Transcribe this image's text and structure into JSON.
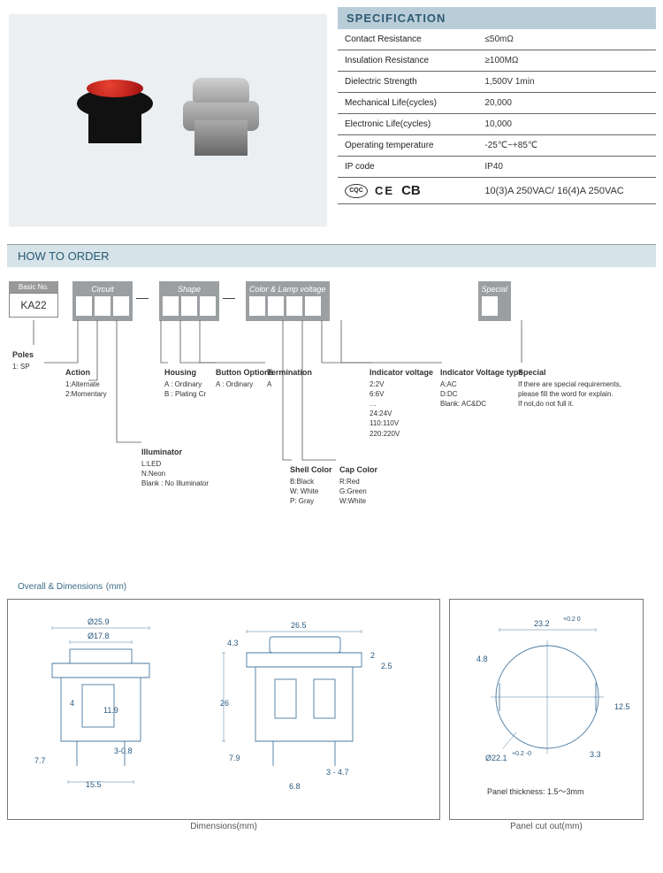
{
  "specification": {
    "header": "SPECIFICATION",
    "rows": [
      {
        "label": "Contact Resistance",
        "value": "≤50mΩ"
      },
      {
        "label": "Insulation Resistance",
        "value": "≥100MΩ"
      },
      {
        "label": "Dielectric Strength",
        "value": "1,500V 1min"
      },
      {
        "label": "Mechanical Life(cycles)",
        "value": "20,000"
      },
      {
        "label": "Electronic  Life(cycles)",
        "value": "10,000"
      },
      {
        "label": "Operating temperature",
        "value": "-25℃~+85℃"
      },
      {
        "label": "IP code",
        "value": "IP40"
      }
    ],
    "cert_cqc": "CQC",
    "cert_ce": "CE",
    "cert_cb": "CB",
    "cert_rating": "10(3)A 250VAC/ 16(4)A 250VAC"
  },
  "order": {
    "header": "HOW TO ORDER",
    "basic_label": "Basic No.",
    "basic_value": "KA22",
    "groups": [
      {
        "title": "Circuit",
        "slots": 3
      },
      {
        "title": "Shape",
        "slots": 3
      },
      {
        "title": "Color & Lamp voltage",
        "slots": 4
      },
      {
        "title": "Special",
        "slots": 1
      }
    ],
    "options": {
      "poles": {
        "title": "Poles",
        "items": [
          "1: SP"
        ]
      },
      "action": {
        "title": "Action",
        "items": [
          "1:Alternate",
          "2:Momentary"
        ]
      },
      "illuminator": {
        "title": "Illuminator",
        "items": [
          "L:LED",
          "N:Neon",
          "Blank : No Illuminator"
        ]
      },
      "housing": {
        "title": "Housing",
        "items": [
          "A : Ordinary",
          "B : Plating Cr"
        ]
      },
      "button_options": {
        "title": "Button Options",
        "items": [
          "A : Ordinary"
        ]
      },
      "termination": {
        "title": "Termination",
        "items": [
          "A"
        ]
      },
      "shell_color": {
        "title": "Shell Color",
        "items": [
          "B:Black",
          "W: White",
          "P: Gray"
        ]
      },
      "cap_color": {
        "title": "Cap Color",
        "items": [
          "R:Red",
          "G:Green",
          "W:White"
        ]
      },
      "indicator_voltage": {
        "title": "Indicator voltage",
        "items": [
          "2:2V",
          "6:6V",
          "…",
          "24:24V",
          "110:110V",
          "220:220V"
        ]
      },
      "indicator_voltage_type": {
        "title": "Indicator Voltage type",
        "items": [
          "A:AC",
          "D:DC",
          "Blank:  AC&DC"
        ]
      },
      "special": {
        "title": "Special",
        "items": [
          "If there are special requirements, please fill the word for explain.",
          "If not,do not full it."
        ]
      }
    }
  },
  "dimensions": {
    "header": "Overall & Dimensions",
    "unit": "(mm)",
    "left_caption": "Dimensions(mm)",
    "right_caption": "Panel cut out(mm)",
    "left_values": {
      "d_outer": "Ø25.9",
      "d_inner": "Ø17.8",
      "h_total": "26",
      "h_top": "4.3",
      "t1": "2",
      "t2": "2.5",
      "w_mid": "11.9",
      "w_pin": "4",
      "pin_h": "7.7",
      "pin_h2": "7.9",
      "w_body": "26.5",
      "w_base": "15.5",
      "hole": "3-0.8",
      "pin_w": "3 - 4.7",
      "pin_gap": "6.8"
    },
    "right_values": {
      "w": "23.2",
      "w_tol": "+0.2\n0",
      "h1": "4.8",
      "h2": "12.5",
      "dia": "Ø22.1",
      "dia_tol": "+0.2\n-0",
      "tab": "3.3",
      "note": "Panel thickness: 1.5～3mm"
    }
  },
  "colors": {
    "header_bg": "#b8cdd8",
    "header_text": "#2f5a72",
    "sub_bg": "#d6e3e9",
    "gray_box": "#9c9fa2",
    "line": "#4a7aa0"
  }
}
